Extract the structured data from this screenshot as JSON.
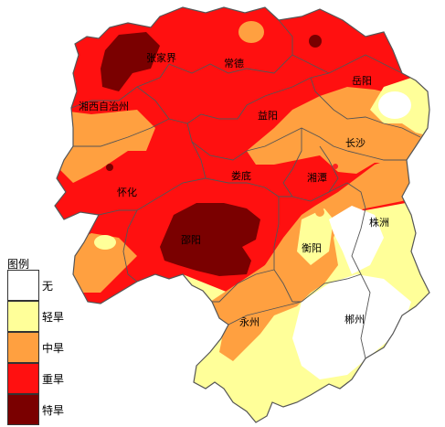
{
  "colors": {
    "none": "#ffffff",
    "light": "#ffff99",
    "moderate": "#ffa040",
    "severe": "#ff1010",
    "extreme": "#7a0000",
    "border": "#555555"
  },
  "cities": [
    {
      "id": "zhangjiajie",
      "label": "张家界"
    },
    {
      "id": "changde",
      "label": "常德"
    },
    {
      "id": "yueyang",
      "label": "岳阳"
    },
    {
      "id": "xiangxi",
      "label": "湘西自治州"
    },
    {
      "id": "yiyang",
      "label": "益阳"
    },
    {
      "id": "changsha",
      "label": "长沙"
    },
    {
      "id": "huaihua",
      "label": "怀化"
    },
    {
      "id": "loudi",
      "label": "娄底"
    },
    {
      "id": "xiangtan",
      "label": "湘潭"
    },
    {
      "id": "zhuzhou",
      "label": "株洲"
    },
    {
      "id": "shaoyang",
      "label": "邵阳"
    },
    {
      "id": "hengyang",
      "label": "衡阳"
    },
    {
      "id": "yongzhou",
      "label": "永州"
    },
    {
      "id": "chenzhou",
      "label": "郴州"
    }
  ],
  "legend": {
    "title": "图例",
    "items": [
      {
        "label": "无",
        "color": "#ffffff"
      },
      {
        "label": "轻旱",
        "color": "#ffff99"
      },
      {
        "label": "中旱",
        "color": "#ffa040"
      },
      {
        "label": "重旱",
        "color": "#ff1010"
      },
      {
        "label": "特旱",
        "color": "#7a0000"
      }
    ]
  }
}
